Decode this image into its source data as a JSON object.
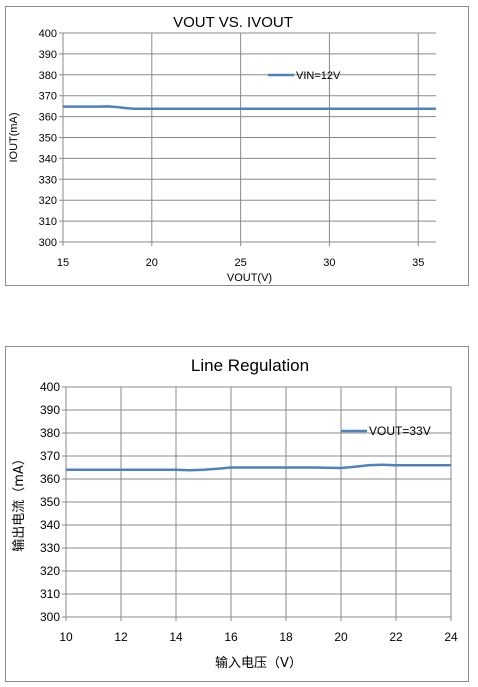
{
  "chart_data": [
    {
      "type": "line",
      "title": "VOUT VS. IVOUT",
      "xlabel": "VOUT(V)",
      "ylabel": "IOUT(mA)",
      "xlim": [
        15,
        36
      ],
      "ylim": [
        300,
        400
      ],
      "xticks": [
        "15",
        "20",
        "25",
        "30",
        "35"
      ],
      "yticks": [
        "300",
        "310",
        "320",
        "330",
        "340",
        "350",
        "360",
        "370",
        "380",
        "390",
        "400"
      ],
      "legend_position": "top-right",
      "grid": true,
      "color": "#4f81bd",
      "series": [
        {
          "name": "VIN=12V",
          "x": [
            15,
            16,
            17,
            17.5,
            18,
            18.5,
            19,
            20,
            22,
            25,
            28,
            30,
            33,
            36
          ],
          "y": [
            364.8,
            364.8,
            364.8,
            364.9,
            364.6,
            364.1,
            363.8,
            363.8,
            363.8,
            363.8,
            363.8,
            363.8,
            363.8,
            363.8
          ]
        }
      ]
    },
    {
      "type": "line",
      "title": "Line Regulation",
      "xlabel": "输入电压（V）",
      "ylabel": "输出电流（mA）",
      "xlim": [
        10,
        24
      ],
      "ylim": [
        300,
        400
      ],
      "xticks": [
        "10",
        "12",
        "14",
        "16",
        "18",
        "20",
        "22",
        "24"
      ],
      "yticks": [
        "300",
        "310",
        "320",
        "330",
        "340",
        "350",
        "360",
        "370",
        "380",
        "390",
        "400"
      ],
      "legend_position": "top-right",
      "grid": true,
      "color": "#4f81bd",
      "series": [
        {
          "name": "VOUT=33V",
          "x": [
            10,
            11,
            12,
            13,
            14,
            14.5,
            15,
            15.5,
            16,
            17,
            18,
            19,
            20,
            20.5,
            21,
            21.5,
            22,
            23,
            24
          ],
          "y": [
            364,
            364,
            364,
            364,
            364,
            363.8,
            364,
            364.5,
            365,
            365,
            365,
            365,
            364.8,
            365.3,
            366,
            366.2,
            366,
            366,
            366
          ]
        }
      ]
    }
  ]
}
